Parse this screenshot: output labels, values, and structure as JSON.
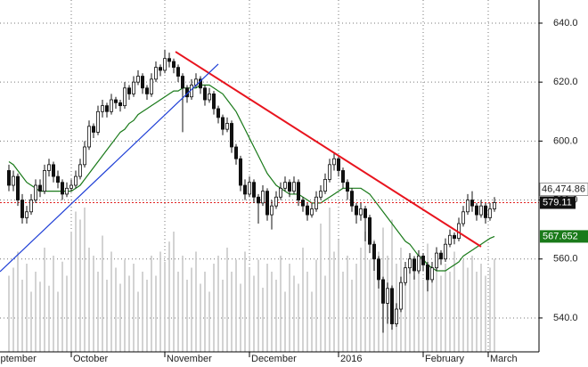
{
  "chart_data": {
    "type": "candlestick",
    "xlim": [
      -2,
      119
    ],
    "ylim": [
      528.5,
      647.85
    ],
    "y2lim": [
      0,
      80000
    ],
    "yticks": [
      {
        "value": 540,
        "label": "540.0"
      },
      {
        "value": 560,
        "label": "560.0"
      },
      {
        "value": 580,
        "label": "580.0"
      },
      {
        "value": 600,
        "label": "600.0"
      },
      {
        "value": 620,
        "label": "620.0"
      },
      {
        "value": 640,
        "label": "640.0"
      }
    ],
    "xticks": [
      {
        "value": -5,
        "label": "September"
      },
      {
        "value": 14,
        "label": "October"
      },
      {
        "value": 35,
        "label": "November"
      },
      {
        "value": 54,
        "label": "December"
      },
      {
        "value": 74,
        "label": "2016"
      },
      {
        "value": 93,
        "label": "February"
      },
      {
        "value": 107.6,
        "label": "March"
      }
    ],
    "grid": true,
    "up_color": "#ffffff",
    "down_color": "#111111",
    "volume_color": "#c8c8c8",
    "ma_color": "#1a7a1a",
    "last_price_line_color": "#e02020",
    "ohlc": [
      [
        590,
        592,
        583,
        585
      ],
      [
        585,
        590,
        583,
        588
      ],
      [
        588,
        589,
        578,
        580
      ],
      [
        580,
        582,
        572,
        574
      ],
      [
        574,
        578,
        572,
        576
      ],
      [
        576,
        582,
        575,
        580
      ],
      [
        580,
        587,
        579,
        585
      ],
      [
        585,
        587,
        581,
        583
      ],
      [
        583,
        592,
        582,
        590
      ],
      [
        590,
        594,
        588,
        592
      ],
      [
        592,
        593,
        586,
        588
      ],
      [
        588,
        590,
        584,
        586
      ],
      [
        586,
        587,
        580,
        582
      ],
      [
        582,
        586,
        581,
        584
      ],
      [
        584,
        587,
        583,
        585
      ],
      [
        585,
        590,
        584,
        588
      ],
      [
        588,
        594,
        587,
        592
      ],
      [
        592,
        600,
        591,
        598
      ],
      [
        598,
        607,
        597,
        605
      ],
      [
        605,
        606,
        601,
        603
      ],
      [
        603,
        612,
        602,
        610
      ],
      [
        610,
        614,
        608,
        612
      ],
      [
        612,
        613,
        608,
        610
      ],
      [
        610,
        616,
        609,
        614
      ],
      [
        614,
        615,
        611,
        613
      ],
      [
        613,
        614,
        610,
        612
      ],
      [
        612,
        620,
        611,
        618
      ],
      [
        618,
        619,
        614,
        616
      ],
      [
        616,
        622,
        615,
        620
      ],
      [
        620,
        624,
        619,
        622
      ],
      [
        622,
        623,
        616,
        618
      ],
      [
        618,
        619,
        614,
        616
      ],
      [
        616,
        623,
        615,
        621
      ],
      [
        621,
        627,
        620,
        625
      ],
      [
        625,
        626,
        622,
        624
      ],
      [
        624,
        631,
        623,
        628
      ],
      [
        628,
        630,
        625,
        627
      ],
      [
        627,
        628,
        623,
        625
      ],
      [
        625,
        626,
        620,
        622
      ],
      [
        622,
        623,
        603,
        618
      ],
      [
        618,
        619,
        613,
        615
      ],
      [
        615,
        621,
        614,
        619
      ],
      [
        619,
        623,
        618,
        621
      ],
      [
        621,
        622,
        616,
        618
      ],
      [
        618,
        619,
        612,
        614
      ],
      [
        614,
        618,
        613,
        616
      ],
      [
        616,
        617,
        609,
        611
      ],
      [
        611,
        612,
        606,
        608
      ],
      [
        608,
        609,
        602,
        604
      ],
      [
        604,
        608,
        603,
        606
      ],
      [
        606,
        607,
        596,
        598
      ],
      [
        598,
        599,
        592,
        594
      ],
      [
        594,
        595,
        583,
        585
      ],
      [
        585,
        587,
        580,
        582
      ],
      [
        582,
        588,
        581,
        586
      ],
      [
        586,
        587,
        579,
        581
      ],
      [
        581,
        582,
        572,
        579
      ],
      [
        579,
        585,
        578,
        583
      ],
      [
        583,
        584,
        573,
        575
      ],
      [
        575,
        580,
        570,
        578
      ],
      [
        578,
        583,
        577,
        581
      ],
      [
        581,
        586,
        580,
        584
      ],
      [
        584,
        588,
        583,
        586
      ],
      [
        586,
        587,
        581,
        583
      ],
      [
        583,
        588,
        582,
        586
      ],
      [
        586,
        587,
        578,
        580
      ],
      [
        580,
        581,
        576,
        578
      ],
      [
        578,
        579,
        573,
        575
      ],
      [
        575,
        579,
        574,
        577
      ],
      [
        577,
        583,
        576,
        581
      ],
      [
        581,
        585,
        580,
        583
      ],
      [
        583,
        589,
        582,
        587
      ],
      [
        587,
        594,
        586,
        592
      ],
      [
        592,
        596,
        590,
        594
      ],
      [
        594,
        595,
        588,
        590
      ],
      [
        590,
        591,
        584,
        586
      ],
      [
        586,
        587,
        580,
        583
      ],
      [
        583,
        584,
        576,
        578
      ],
      [
        578,
        579,
        572,
        575
      ],
      [
        575,
        579,
        573,
        577
      ],
      [
        577,
        578,
        566,
        574
      ],
      [
        574,
        575,
        562,
        565
      ],
      [
        565,
        566,
        556,
        560
      ],
      [
        560,
        561,
        550,
        553
      ],
      [
        553,
        554,
        535,
        545
      ],
      [
        545,
        552,
        538,
        550
      ],
      [
        550,
        551,
        536,
        538
      ],
      [
        538,
        545,
        537,
        543
      ],
      [
        543,
        554,
        542,
        552
      ],
      [
        552,
        559,
        551,
        557
      ],
      [
        557,
        562,
        555,
        560
      ],
      [
        560,
        561,
        553,
        556
      ],
      [
        556,
        563,
        555,
        561
      ],
      [
        561,
        562,
        556,
        558
      ],
      [
        558,
        559,
        549,
        553
      ],
      [
        553,
        559,
        552,
        557
      ],
      [
        557,
        564,
        556,
        562
      ],
      [
        562,
        563,
        558,
        560
      ],
      [
        560,
        567,
        559,
        565
      ],
      [
        565,
        570,
        564,
        568
      ],
      [
        568,
        569,
        565,
        567
      ],
      [
        567,
        574,
        566,
        572
      ],
      [
        572,
        578,
        571,
        576
      ],
      [
        576,
        582,
        575,
        580
      ],
      [
        580,
        583,
        576,
        578
      ],
      [
        578,
        579,
        573,
        575
      ],
      [
        575,
        580,
        574,
        578
      ],
      [
        578,
        579,
        572,
        574
      ],
      [
        574,
        579,
        573,
        577
      ],
      [
        577,
        581,
        576,
        579.11
      ]
    ],
    "volume": [
      38000,
      42000,
      50000,
      36000,
      44000,
      30000,
      40000,
      35000,
      52000,
      33000,
      48000,
      30000,
      45000,
      38000,
      60000,
      70000,
      66000,
      72000,
      52000,
      48000,
      40000,
      58000,
      36000,
      50000,
      42000,
      34000,
      46000,
      38000,
      44000,
      30000,
      40000,
      36000,
      48000,
      38000,
      50000,
      45000,
      55000,
      60000,
      40000,
      48000,
      36000,
      42000,
      50000,
      34000,
      40000,
      30000,
      44000,
      48000,
      36000,
      52000,
      40000,
      46000,
      34000,
      50000,
      42000,
      38000,
      46000,
      32000,
      44000,
      40000,
      36000,
      48000,
      30000,
      44000,
      38000,
      34000,
      52000,
      40000,
      30000,
      46000,
      64000,
      38000,
      72000,
      50000,
      56000,
      40000,
      48000,
      36000,
      44000,
      52000,
      60000,
      46000,
      56000,
      50000,
      62000,
      48000,
      66000,
      44000,
      52000,
      40000,
      48000,
      38000,
      44000,
      36000,
      54000,
      42000,
      48000,
      38000,
      44000,
      40000,
      50000,
      36000,
      46000,
      42000,
      48000,
      40000,
      44000,
      38000,
      42000,
      46474.86
    ],
    "last_volume_label": "46,474.86",
    "ma": [
      593,
      592,
      590,
      588,
      586,
      585,
      584,
      583,
      583,
      583,
      583,
      583,
      583,
      583,
      583,
      584,
      585,
      587,
      589,
      591,
      593,
      595,
      597,
      599,
      601,
      603,
      604,
      606,
      607,
      609,
      610,
      611,
      612,
      613,
      614,
      615,
      616,
      617,
      617,
      618,
      618,
      618,
      618,
      619,
      619,
      619,
      618,
      617,
      616,
      614,
      612,
      610,
      607,
      604,
      601,
      598,
      595,
      592,
      589,
      587,
      585,
      584,
      583,
      582,
      582,
      582,
      581,
      580,
      579,
      579,
      579,
      580,
      581,
      582,
      583,
      584,
      584,
      584,
      584,
      584,
      583,
      582,
      580,
      578,
      576,
      574,
      572,
      570,
      568,
      566,
      565,
      563,
      561,
      560,
      558,
      557,
      556,
      556,
      556,
      557,
      558,
      559,
      561,
      562,
      563,
      564,
      565,
      566,
      567,
      567.652
    ],
    "trendlines": [
      {
        "color": "#e8141e",
        "x": [
          37.4,
          106
        ],
        "y": [
          630.3,
          564.2
        ]
      },
      {
        "color": "#1f3fd6",
        "x": [
          -2,
          47
        ],
        "y": [
          555.7,
          626.1
        ]
      }
    ]
  }
}
